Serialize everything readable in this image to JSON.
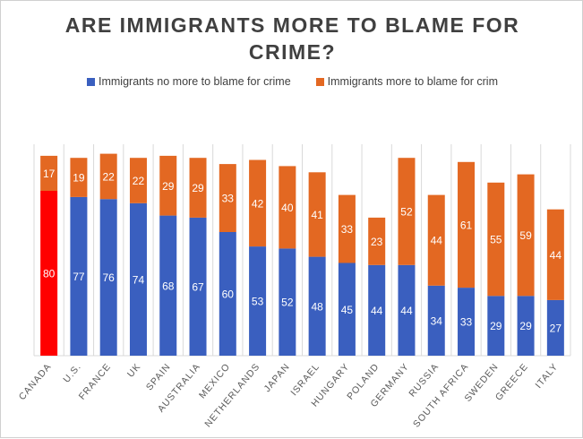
{
  "chart_data": {
    "type": "stacked-bar",
    "title": "ARE IMMIGRANTS MORE TO BLAME FOR CRIME?",
    "title_lines": [
      "ARE IMMIGRANTS MORE TO BLAME FOR",
      "CRIME?"
    ],
    "categories": [
      "CANADA",
      "U.S.",
      "FRANCE",
      "UK",
      "SPAIN",
      "AUSTRALIA",
      "MEXICO",
      "NETHERLANDS",
      "JAPAN",
      "ISRAEL",
      "HUNGARY",
      "POLAND",
      "GERMANY",
      "RUSSIA",
      "SOUTH AFRICA",
      "SWEDEN",
      "GREECE",
      "ITALY"
    ],
    "series": [
      {
        "name": "Immigrants no more to blame for crime",
        "color": "#3a5fbf",
        "values": [
          80,
          77,
          76,
          74,
          68,
          67,
          60,
          53,
          52,
          48,
          45,
          44,
          44,
          34,
          33,
          29,
          29,
          27
        ]
      },
      {
        "name": "Immigrants more to blame for crim",
        "color": "#e36822",
        "values": [
          17,
          19,
          22,
          22,
          29,
          29,
          33,
          42,
          40,
          41,
          33,
          23,
          52,
          44,
          61,
          55,
          59,
          44
        ]
      }
    ],
    "highlight": {
      "category": "CANADA",
      "color": "#ff0000"
    },
    "legend_position": "top",
    "grid": "vertical category separators",
    "ylim": [
      0,
      100
    ]
  }
}
